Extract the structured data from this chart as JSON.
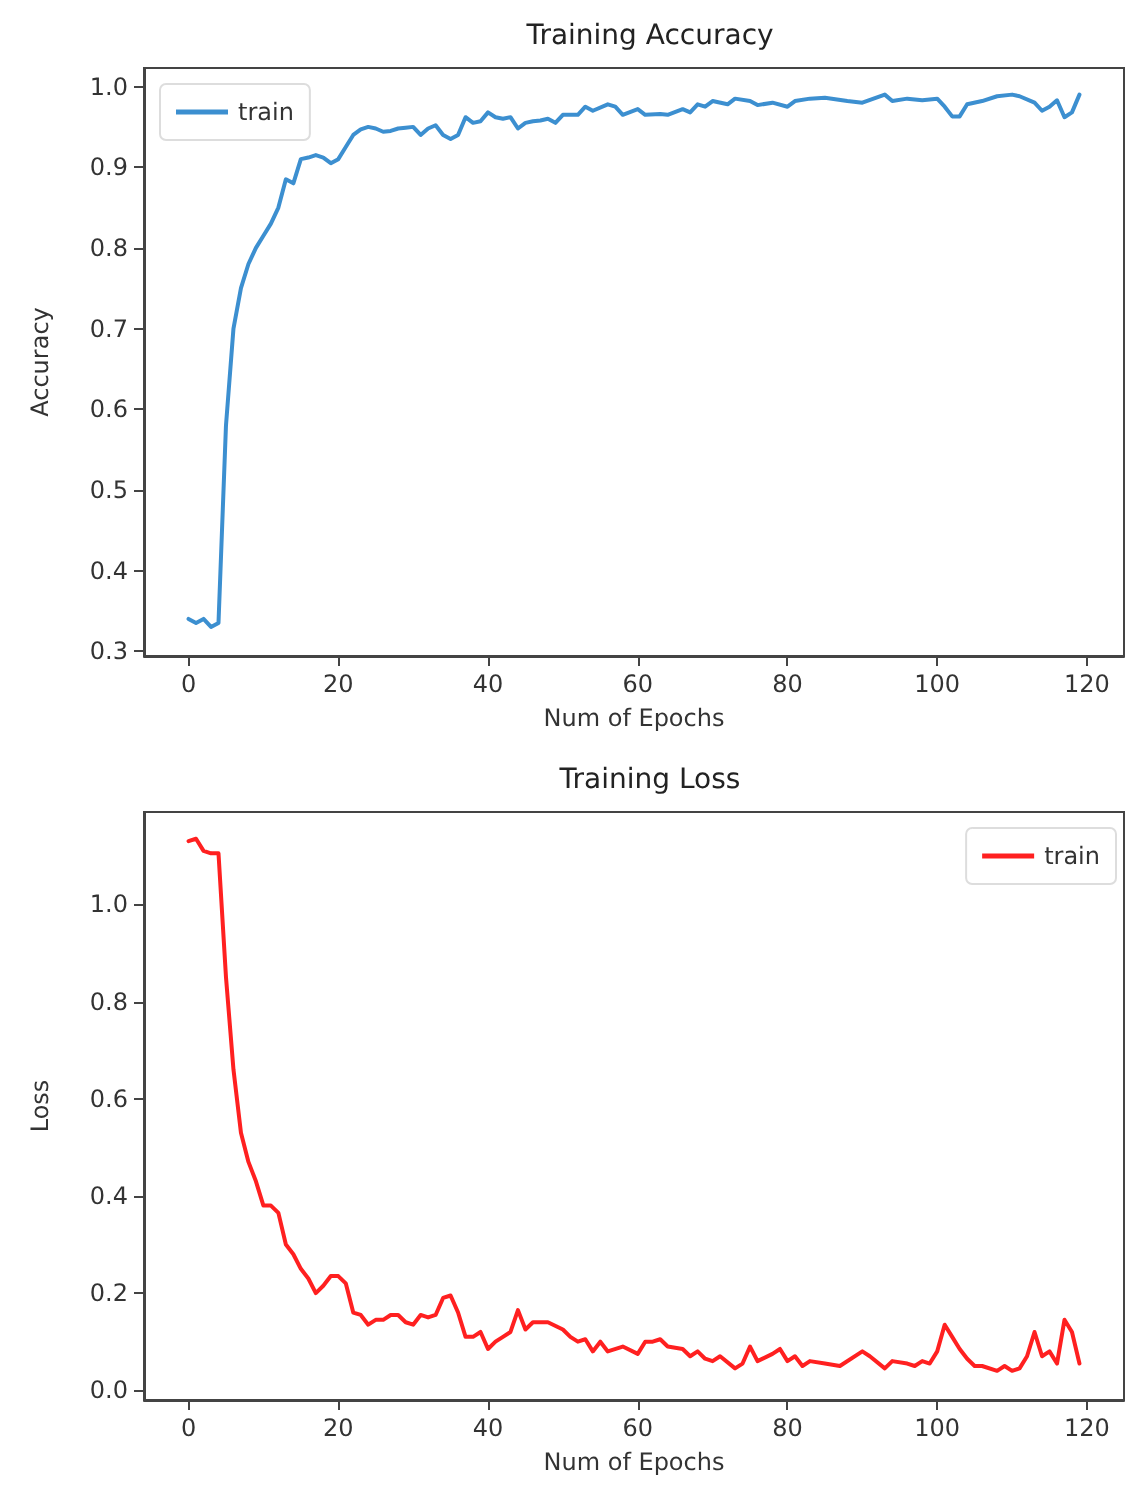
{
  "chart_data": [
    {
      "type": "line",
      "title": "Training Accuracy",
      "xlabel": "Num of Epochs",
      "ylabel": "Accuracy",
      "legend": "top left",
      "marker": "none",
      "line_style": "solid",
      "grid": false,
      "xlim": [
        -5.95,
        124.95
      ],
      "xticks": [
        0,
        20,
        40,
        60,
        80,
        100,
        120
      ],
      "ylim": [
        0.294,
        1.023
      ],
      "yticks": [
        {
          "value": 0.3,
          "label": "0.3"
        },
        {
          "value": 0.4,
          "label": "0.4"
        },
        {
          "value": 0.5,
          "label": "0.5"
        },
        {
          "value": 0.6,
          "label": "0.6"
        },
        {
          "value": 0.7,
          "label": "0.7"
        },
        {
          "value": 0.8,
          "label": "0.8"
        },
        {
          "value": 0.9,
          "label": "0.9"
        },
        {
          "value": 1,
          "label": "1.0"
        }
      ],
      "series": [
        {
          "name": "train",
          "color": "#3c8fd0",
          "x": [
            0,
            1,
            2,
            3,
            4,
            5,
            6,
            7,
            8,
            9,
            10,
            11,
            12,
            13,
            14,
            15,
            16,
            17,
            18,
            19,
            20,
            21,
            22,
            23,
            24,
            25,
            26,
            27,
            28,
            29,
            30,
            31,
            32,
            33,
            34,
            35,
            36,
            37,
            38,
            39,
            40,
            41,
            42,
            43,
            44,
            45,
            46,
            47,
            48,
            49,
            50,
            52,
            53,
            54,
            56,
            57,
            58,
            60,
            61,
            63,
            64,
            66,
            67,
            68,
            69,
            70,
            72,
            73,
            75,
            76,
            78,
            80,
            81,
            83,
            85,
            88,
            90,
            93,
            94,
            96,
            98,
            100,
            101,
            102,
            103,
            104,
            106,
            108,
            110,
            111,
            113,
            114,
            115,
            116,
            117,
            118,
            119
          ],
          "values": [
            0.34,
            0.335,
            0.34,
            0.33,
            0.335,
            0.58,
            0.7,
            0.75,
            0.78,
            0.8,
            0.815,
            0.83,
            0.85,
            0.885,
            0.88,
            0.91,
            0.912,
            0.915,
            0.912,
            0.905,
            0.91,
            0.925,
            0.94,
            0.947,
            0.95,
            0.948,
            0.944,
            0.945,
            0.948,
            0.949,
            0.95,
            0.94,
            0.948,
            0.952,
            0.94,
            0.935,
            0.94,
            0.962,
            0.955,
            0.957,
            0.968,
            0.962,
            0.96,
            0.962,
            0.948,
            0.955,
            0.957,
            0.958,
            0.96,
            0.955,
            0.965,
            0.965,
            0.975,
            0.97,
            0.978,
            0.975,
            0.965,
            0.972,
            0.965,
            0.966,
            0.965,
            0.972,
            0.968,
            0.978,
            0.975,
            0.982,
            0.978,
            0.985,
            0.982,
            0.977,
            0.98,
            0.975,
            0.982,
            0.985,
            0.986,
            0.982,
            0.98,
            0.99,
            0.982,
            0.985,
            0.983,
            0.985,
            0.975,
            0.963,
            0.963,
            0.978,
            0.982,
            0.988,
            0.99,
            0.988,
            0.98,
            0.97,
            0.975,
            0.983,
            0.962,
            0.968,
            0.99
          ]
        }
      ]
    },
    {
      "type": "line",
      "title": "Training Loss",
      "xlabel": "Num of Epochs",
      "ylabel": "Loss",
      "legend": "top right",
      "marker": "none",
      "line_style": "solid",
      "grid": false,
      "xlim": [
        -5.95,
        124.95
      ],
      "xticks": [
        0,
        20,
        40,
        60,
        80,
        100,
        120
      ],
      "ylim": [
        -0.02,
        1.19
      ],
      "yticks": [
        {
          "value": 0,
          "label": "0.0"
        },
        {
          "value": 0.2,
          "label": "0.2"
        },
        {
          "value": 0.4,
          "label": "0.4"
        },
        {
          "value": 0.6,
          "label": "0.6"
        },
        {
          "value": 0.8,
          "label": "0.8"
        },
        {
          "value": 1,
          "label": "1.0"
        }
      ],
      "series": [
        {
          "name": "train",
          "color": "#ff2020",
          "x": [
            0,
            1,
            2,
            3,
            4,
            5,
            6,
            7,
            8,
            9,
            10,
            11,
            12,
            13,
            14,
            15,
            16,
            17,
            18,
            19,
            20,
            21,
            22,
            23,
            24,
            25,
            26,
            27,
            28,
            29,
            30,
            31,
            32,
            33,
            34,
            35,
            36,
            37,
            38,
            39,
            40,
            41,
            42,
            43,
            44,
            45,
            46,
            48,
            50,
            51,
            52,
            53,
            54,
            55,
            56,
            58,
            60,
            61,
            62,
            63,
            64,
            66,
            67,
            68,
            69,
            70,
            71,
            73,
            74,
            75,
            76,
            78,
            79,
            80,
            81,
            82,
            83,
            85,
            87,
            90,
            91,
            93,
            94,
            96,
            97,
            98,
            99,
            100,
            101,
            102,
            103,
            104,
            105,
            106,
            108,
            109,
            110,
            111,
            112,
            113,
            114,
            115,
            116,
            117,
            118,
            119
          ],
          "values": [
            1.13,
            1.135,
            1.11,
            1.105,
            1.105,
            0.85,
            0.66,
            0.53,
            0.47,
            0.43,
            0.38,
            0.38,
            0.365,
            0.3,
            0.28,
            0.25,
            0.23,
            0.2,
            0.215,
            0.235,
            0.235,
            0.22,
            0.16,
            0.155,
            0.135,
            0.145,
            0.145,
            0.155,
            0.155,
            0.14,
            0.135,
            0.155,
            0.15,
            0.155,
            0.19,
            0.195,
            0.16,
            0.11,
            0.11,
            0.12,
            0.085,
            0.1,
            0.11,
            0.12,
            0.165,
            0.125,
            0.14,
            0.14,
            0.125,
            0.11,
            0.1,
            0.105,
            0.08,
            0.1,
            0.08,
            0.09,
            0.075,
            0.1,
            0.1,
            0.105,
            0.09,
            0.085,
            0.07,
            0.08,
            0.065,
            0.06,
            0.07,
            0.045,
            0.055,
            0.09,
            0.06,
            0.075,
            0.085,
            0.06,
            0.07,
            0.05,
            0.06,
            0.055,
            0.05,
            0.08,
            0.07,
            0.045,
            0.06,
            0.055,
            0.05,
            0.06,
            0.055,
            0.08,
            0.135,
            0.11,
            0.085,
            0.065,
            0.05,
            0.05,
            0.04,
            0.05,
            0.04,
            0.045,
            0.07,
            0.12,
            0.07,
            0.08,
            0.055,
            0.145,
            0.12,
            0.055
          ]
        }
      ]
    }
  ]
}
